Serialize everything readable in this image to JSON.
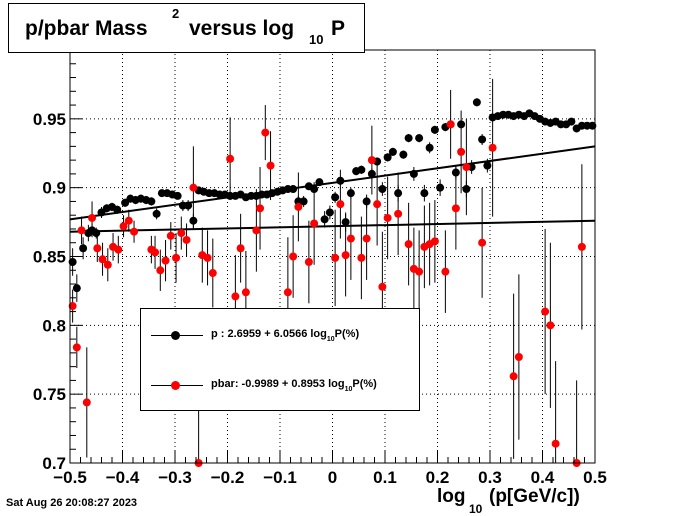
{
  "title": {
    "main": "p/pbar Mass",
    "sup": "2",
    "mid": " versus log",
    "sub": "10",
    "end": "P"
  },
  "timestamp": "Sat Aug 26 20:08:27 2023",
  "xaxis_label": {
    "pre": "log",
    "sub": "10",
    "post": "(p[GeV/c])"
  },
  "legend": {
    "p": {
      "pre": "p   : 2.6959 + 6.0566 log",
      "sub": "10",
      "post": "P(%)"
    },
    "pbar": {
      "pre": "pbar: -0.9989 + 0.8953 log",
      "sub": "10",
      "post": "P(%)"
    }
  },
  "colors": {
    "p": "#000000",
    "pbar": "#ff0000",
    "fit": "#000000"
  },
  "chart_data": {
    "type": "scatter",
    "xlim": [
      -0.5,
      0.5
    ],
    "ylim": [
      0.7,
      1.0
    ],
    "grid": true,
    "x_ticks": [
      -0.5,
      -0.4,
      -0.3,
      -0.2,
      -0.1,
      0,
      0.1,
      0.2,
      0.3,
      0.4,
      0.5
    ],
    "y_ticks": [
      0.7,
      0.75,
      0.8,
      0.85,
      0.9,
      0.95
    ],
    "x_tick_labels": [
      "−0.5",
      "−0.4",
      "−0.3",
      "−0.2",
      "−0.1",
      "0",
      "0.1",
      "0.2",
      "0.3",
      "0.4",
      "0.5"
    ],
    "y_tick_labels": [
      "0.7",
      "0.75",
      "0.8",
      "0.85",
      "0.9",
      "0.95"
    ],
    "fit_lines": [
      {
        "name": "p fit",
        "x": [
          -0.5,
          0.5
        ],
        "y": [
          0.877,
          0.93
        ]
      },
      {
        "name": "pbar fit",
        "x": [
          -0.5,
          0.5
        ],
        "y": [
          0.868,
          0.876
        ]
      }
    ],
    "series": [
      {
        "name": "p",
        "points": [
          [
            -0.495,
            0.846,
            0.01
          ],
          [
            -0.487,
            0.827,
            0.01
          ],
          [
            -0.475,
            0.856,
            0.008
          ],
          [
            -0.465,
            0.867,
            0.006
          ],
          [
            -0.458,
            0.869,
            0.005
          ],
          [
            -0.45,
            0.867,
            0.004
          ],
          [
            -0.44,
            0.882,
            0.004
          ],
          [
            -0.43,
            0.885,
            0.003
          ],
          [
            -0.42,
            0.886,
            0.003
          ],
          [
            -0.41,
            0.884,
            0.003
          ],
          [
            -0.395,
            0.889,
            0.003
          ],
          [
            -0.385,
            0.892,
            0.003
          ],
          [
            -0.375,
            0.891,
            0.003
          ],
          [
            -0.365,
            0.892,
            0.003
          ],
          [
            -0.355,
            0.891,
            0.003
          ],
          [
            -0.345,
            0.89,
            0.003
          ],
          [
            -0.335,
            0.881,
            0.004
          ],
          [
            -0.325,
            0.896,
            0.002
          ],
          [
            -0.315,
            0.896,
            0.002
          ],
          [
            -0.305,
            0.895,
            0.002
          ],
          [
            -0.295,
            0.894,
            0.002
          ],
          [
            -0.285,
            0.887,
            0.004
          ],
          [
            -0.275,
            0.887,
            0.004
          ],
          [
            -0.265,
            0.876,
            0.005
          ],
          [
            -0.255,
            0.898,
            0.002
          ],
          [
            -0.245,
            0.897,
            0.002
          ],
          [
            -0.235,
            0.896,
            0.002
          ],
          [
            -0.225,
            0.896,
            0.002
          ],
          [
            -0.215,
            0.895,
            0.002
          ],
          [
            -0.205,
            0.895,
            0.002
          ],
          [
            -0.195,
            0.894,
            0.002
          ],
          [
            -0.185,
            0.894,
            0.002
          ],
          [
            -0.175,
            0.895,
            0.002
          ],
          [
            -0.165,
            0.893,
            0.002
          ],
          [
            -0.155,
            0.894,
            0.002
          ],
          [
            -0.145,
            0.894,
            0.002
          ],
          [
            -0.135,
            0.895,
            0.002
          ],
          [
            -0.125,
            0.895,
            0.002
          ],
          [
            -0.115,
            0.896,
            0.002
          ],
          [
            -0.105,
            0.897,
            0.002
          ],
          [
            -0.095,
            0.898,
            0.002
          ],
          [
            -0.085,
            0.899,
            0.002
          ],
          [
            -0.075,
            0.899,
            0.002
          ],
          [
            -0.065,
            0.89,
            0.004
          ],
          [
            -0.055,
            0.89,
            0.004
          ],
          [
            -0.045,
            0.901,
            0.002
          ],
          [
            -0.035,
            0.899,
            0.002
          ],
          [
            -0.025,
            0.904,
            0.002
          ],
          [
            -0.015,
            0.877,
            0.006
          ],
          [
            -0.005,
            0.882,
            0.005
          ],
          [
            0.005,
            0.893,
            0.004
          ],
          [
            0.015,
            0.905,
            0.003
          ],
          [
            0.025,
            0.875,
            0.007
          ],
          [
            0.035,
            0.896,
            0.004
          ],
          [
            0.045,
            0.912,
            0.003
          ],
          [
            0.055,
            0.913,
            0.003
          ],
          [
            0.065,
            0.89,
            0.005
          ],
          [
            0.075,
            0.91,
            0.004
          ],
          [
            0.085,
            0.919,
            0.003
          ],
          [
            0.095,
            0.899,
            0.005
          ],
          [
            0.105,
            0.922,
            0.003
          ],
          [
            0.115,
            0.926,
            0.003
          ],
          [
            0.125,
            0.896,
            0.006
          ],
          [
            0.135,
            0.924,
            0.003
          ],
          [
            0.145,
            0.936,
            0.003
          ],
          [
            0.155,
            0.91,
            0.005
          ],
          [
            0.165,
            0.936,
            0.003
          ],
          [
            0.175,
            0.896,
            0.006
          ],
          [
            0.185,
            0.929,
            0.004
          ],
          [
            0.195,
            0.942,
            0.003
          ],
          [
            0.205,
            0.9,
            0.006
          ],
          [
            0.215,
            0.944,
            0.003
          ],
          [
            0.225,
            0.946,
            0.003
          ],
          [
            0.235,
            0.911,
            0.005
          ],
          [
            0.245,
            0.946,
            0.003
          ],
          [
            0.255,
            0.899,
            0.006
          ],
          [
            0.265,
            0.915,
            0.005
          ],
          [
            0.275,
            0.962,
            0.003
          ],
          [
            0.285,
            0.935,
            0.004
          ],
          [
            0.295,
            0.916,
            0.005
          ],
          [
            0.305,
            0.951,
            0.002
          ],
          [
            0.315,
            0.952,
            0.002
          ],
          [
            0.325,
            0.953,
            0.002
          ],
          [
            0.335,
            0.953,
            0.002
          ],
          [
            0.345,
            0.952,
            0.002
          ],
          [
            0.355,
            0.953,
            0.002
          ],
          [
            0.365,
            0.952,
            0.002
          ],
          [
            0.375,
            0.954,
            0.002
          ],
          [
            0.385,
            0.952,
            0.002
          ],
          [
            0.395,
            0.95,
            0.002
          ],
          [
            0.405,
            0.948,
            0.002
          ],
          [
            0.415,
            0.947,
            0.002
          ],
          [
            0.425,
            0.948,
            0.002
          ],
          [
            0.435,
            0.946,
            0.002
          ],
          [
            0.445,
            0.946,
            0.002
          ],
          [
            0.455,
            0.948,
            0.002
          ],
          [
            0.465,
            0.943,
            0.002
          ],
          [
            0.475,
            0.945,
            0.002
          ],
          [
            0.485,
            0.945,
            0.002
          ],
          [
            0.495,
            0.945,
            0.002
          ]
        ]
      },
      {
        "name": "pbar",
        "points": [
          [
            -0.495,
            0.814,
            0.012
          ],
          [
            -0.487,
            0.784,
            0.015
          ],
          [
            -0.478,
            0.869,
            0.01
          ],
          [
            -0.468,
            0.744,
            0.04
          ],
          [
            -0.458,
            0.878,
            0.012
          ],
          [
            -0.448,
            0.856,
            0.01
          ],
          [
            -0.438,
            0.848,
            0.012
          ],
          [
            -0.428,
            0.844,
            0.012
          ],
          [
            -0.418,
            0.857,
            0.01
          ],
          [
            -0.408,
            0.855,
            0.01
          ],
          [
            -0.398,
            0.872,
            0.008
          ],
          [
            -0.388,
            0.876,
            0.008
          ],
          [
            -0.378,
            0.868,
            0.008
          ],
          [
            -0.345,
            0.855,
            0.01
          ],
          [
            -0.338,
            0.853,
            0.012
          ],
          [
            -0.328,
            0.84,
            0.015
          ],
          [
            -0.318,
            0.847,
            0.015
          ],
          [
            -0.308,
            0.865,
            0.01
          ],
          [
            -0.298,
            0.849,
            0.018
          ],
          [
            -0.288,
            0.867,
            0.012
          ],
          [
            -0.278,
            0.862,
            0.012
          ],
          [
            -0.265,
            0.9,
            0.03
          ],
          [
            -0.255,
            0.7,
            0.06
          ],
          [
            -0.248,
            0.851,
            0.02
          ],
          [
            -0.238,
            0.849,
            0.02
          ],
          [
            -0.228,
            0.838,
            0.025
          ],
          [
            -0.195,
            0.921,
            0.03
          ],
          [
            -0.185,
            0.821,
            0.03
          ],
          [
            -0.175,
            0.856,
            0.025
          ],
          [
            -0.165,
            0.824,
            0.03
          ],
          [
            -0.145,
            0.869,
            0.03
          ],
          [
            -0.138,
            0.885,
            0.03
          ],
          [
            -0.128,
            0.94,
            0.02
          ],
          [
            -0.118,
            0.916,
            0.025
          ],
          [
            -0.085,
            0.824,
            0.04
          ],
          [
            -0.075,
            0.85,
            0.03
          ],
          [
            -0.065,
            0.886,
            0.025
          ],
          [
            -0.045,
            0.846,
            0.03
          ],
          [
            -0.035,
            0.874,
            0.03
          ],
          [
            0.005,
            0.849,
            0.035
          ],
          [
            0.015,
            0.888,
            0.025
          ],
          [
            0.025,
            0.851,
            0.03
          ],
          [
            0.035,
            0.863,
            0.03
          ],
          [
            0.055,
            0.849,
            0.03
          ],
          [
            0.065,
            0.863,
            0.03
          ],
          [
            0.075,
            0.92,
            0.025
          ],
          [
            0.085,
            0.888,
            0.03
          ],
          [
            0.095,
            0.828,
            0.04
          ],
          [
            0.105,
            0.878,
            0.03
          ],
          [
            0.125,
            0.881,
            0.03
          ],
          [
            0.145,
            0.859,
            0.03
          ],
          [
            0.155,
            0.841,
            0.03
          ],
          [
            0.165,
            0.839,
            0.03
          ],
          [
            0.175,
            0.857,
            0.03
          ],
          [
            0.185,
            0.859,
            0.03
          ],
          [
            0.195,
            0.861,
            0.03
          ],
          [
            0.215,
            0.839,
            0.03
          ],
          [
            0.225,
            0.946,
            0.025
          ],
          [
            0.235,
            0.885,
            0.03
          ],
          [
            0.245,
            0.926,
            0.03
          ],
          [
            0.255,
            0.915,
            0.035
          ],
          [
            0.285,
            0.86,
            0.04
          ],
          [
            0.305,
            0.929,
            0.05
          ],
          [
            0.345,
            0.763,
            0.06
          ],
          [
            0.355,
            0.777,
            0.06
          ],
          [
            0.405,
            0.81,
            0.06
          ],
          [
            0.415,
            0.8,
            0.06
          ],
          [
            0.425,
            0.714,
            0.06
          ],
          [
            0.465,
            0.7,
            0.06
          ],
          [
            0.475,
            0.857,
            0.06
          ]
        ]
      }
    ]
  }
}
